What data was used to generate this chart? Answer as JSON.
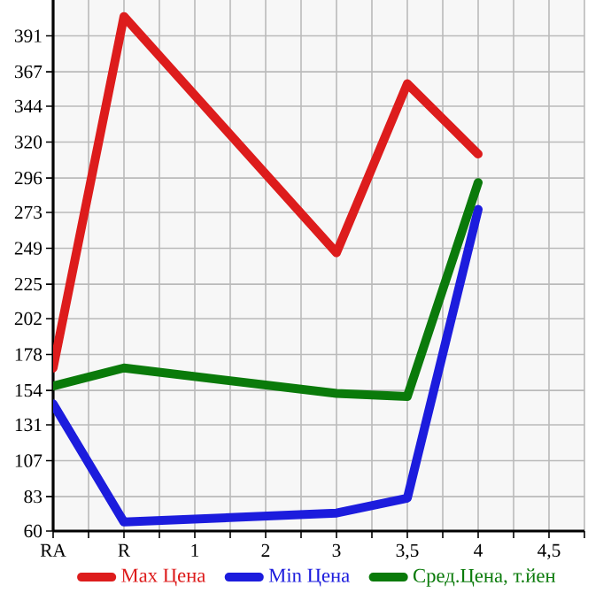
{
  "chart_data": {
    "type": "line",
    "categories": [
      "RA",
      "R",
      "1",
      "2",
      "3",
      "3,5",
      "4",
      "4,5"
    ],
    "series": [
      {
        "name": "Max Цена",
        "color": "#dd1c1c",
        "values": [
          169,
          404,
          null,
          null,
          246,
          359,
          312,
          null
        ]
      },
      {
        "name": "Min Цена",
        "color": "#1c1cdd",
        "values": [
          145,
          66,
          null,
          null,
          72,
          82,
          275,
          null
        ]
      },
      {
        "name": "Сред.Цена, т.йен",
        "color": "#0a7a0a",
        "values": [
          157,
          169,
          null,
          null,
          152,
          150,
          293,
          null
        ]
      }
    ],
    "ylim": [
      60,
      415
    ],
    "yticks": [
      60,
      83,
      107,
      131,
      154,
      178,
      202,
      225,
      249,
      273,
      296,
      320,
      344,
      367,
      391
    ],
    "grid": true,
    "legend": "bottom",
    "marker": "none",
    "line_style": "solid"
  }
}
